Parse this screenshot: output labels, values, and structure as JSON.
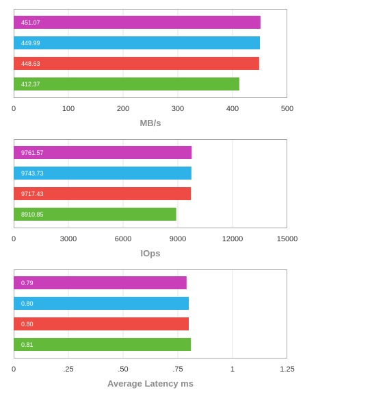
{
  "chart_data": [
    {
      "type": "bar",
      "orientation": "horizontal",
      "xlabel": "MB/s",
      "xlim": [
        0,
        500
      ],
      "xticks": [
        0,
        100,
        200,
        300,
        400,
        500
      ],
      "xtick_labels": [
        "0",
        "100",
        "200",
        "300",
        "400",
        "500"
      ],
      "grid": true,
      "bars": [
        {
          "value": 451.07,
          "label": "451.07",
          "color": "#c93fb9"
        },
        {
          "value": 449.99,
          "label": "449.99",
          "color": "#2eb2e8"
        },
        {
          "value": 448.63,
          "label": "448.63",
          "color": "#ed4b44"
        },
        {
          "value": 412.37,
          "label": "412.37",
          "color": "#62b93a"
        }
      ]
    },
    {
      "type": "bar",
      "orientation": "horizontal",
      "xlabel": "IOps",
      "xlim": [
        0,
        15000
      ],
      "xticks": [
        0,
        3000,
        6000,
        9000,
        12000,
        15000
      ],
      "xtick_labels": [
        "0",
        "3000",
        "6000",
        "9000",
        "12000",
        "15000"
      ],
      "grid": true,
      "bars": [
        {
          "value": 9761.57,
          "label": "9761.57",
          "color": "#c93fb9"
        },
        {
          "value": 9743.73,
          "label": "9743.73",
          "color": "#2eb2e8"
        },
        {
          "value": 9717.43,
          "label": "9717.43",
          "color": "#ed4b44"
        },
        {
          "value": 8910.85,
          "label": "8910.85",
          "color": "#62b93a"
        }
      ]
    },
    {
      "type": "bar",
      "orientation": "horizontal",
      "xlabel": "Average Latency ms",
      "xlim": [
        0,
        1.25
      ],
      "xticks": [
        0,
        0.25,
        0.5,
        0.75,
        1,
        1.25
      ],
      "xtick_labels": [
        "0",
        ".25",
        ".50",
        ".75",
        "1",
        "1.25"
      ],
      "grid": true,
      "bars": [
        {
          "value": 0.79,
          "label": "0.79",
          "color": "#c93fb9"
        },
        {
          "value": 0.8,
          "label": "0.80",
          "color": "#2eb2e8"
        },
        {
          "value": 0.8,
          "label": "0.80",
          "color": "#ed4b44"
        },
        {
          "value": 0.81,
          "label": "0.81",
          "color": "#62b93a"
        }
      ]
    }
  ]
}
